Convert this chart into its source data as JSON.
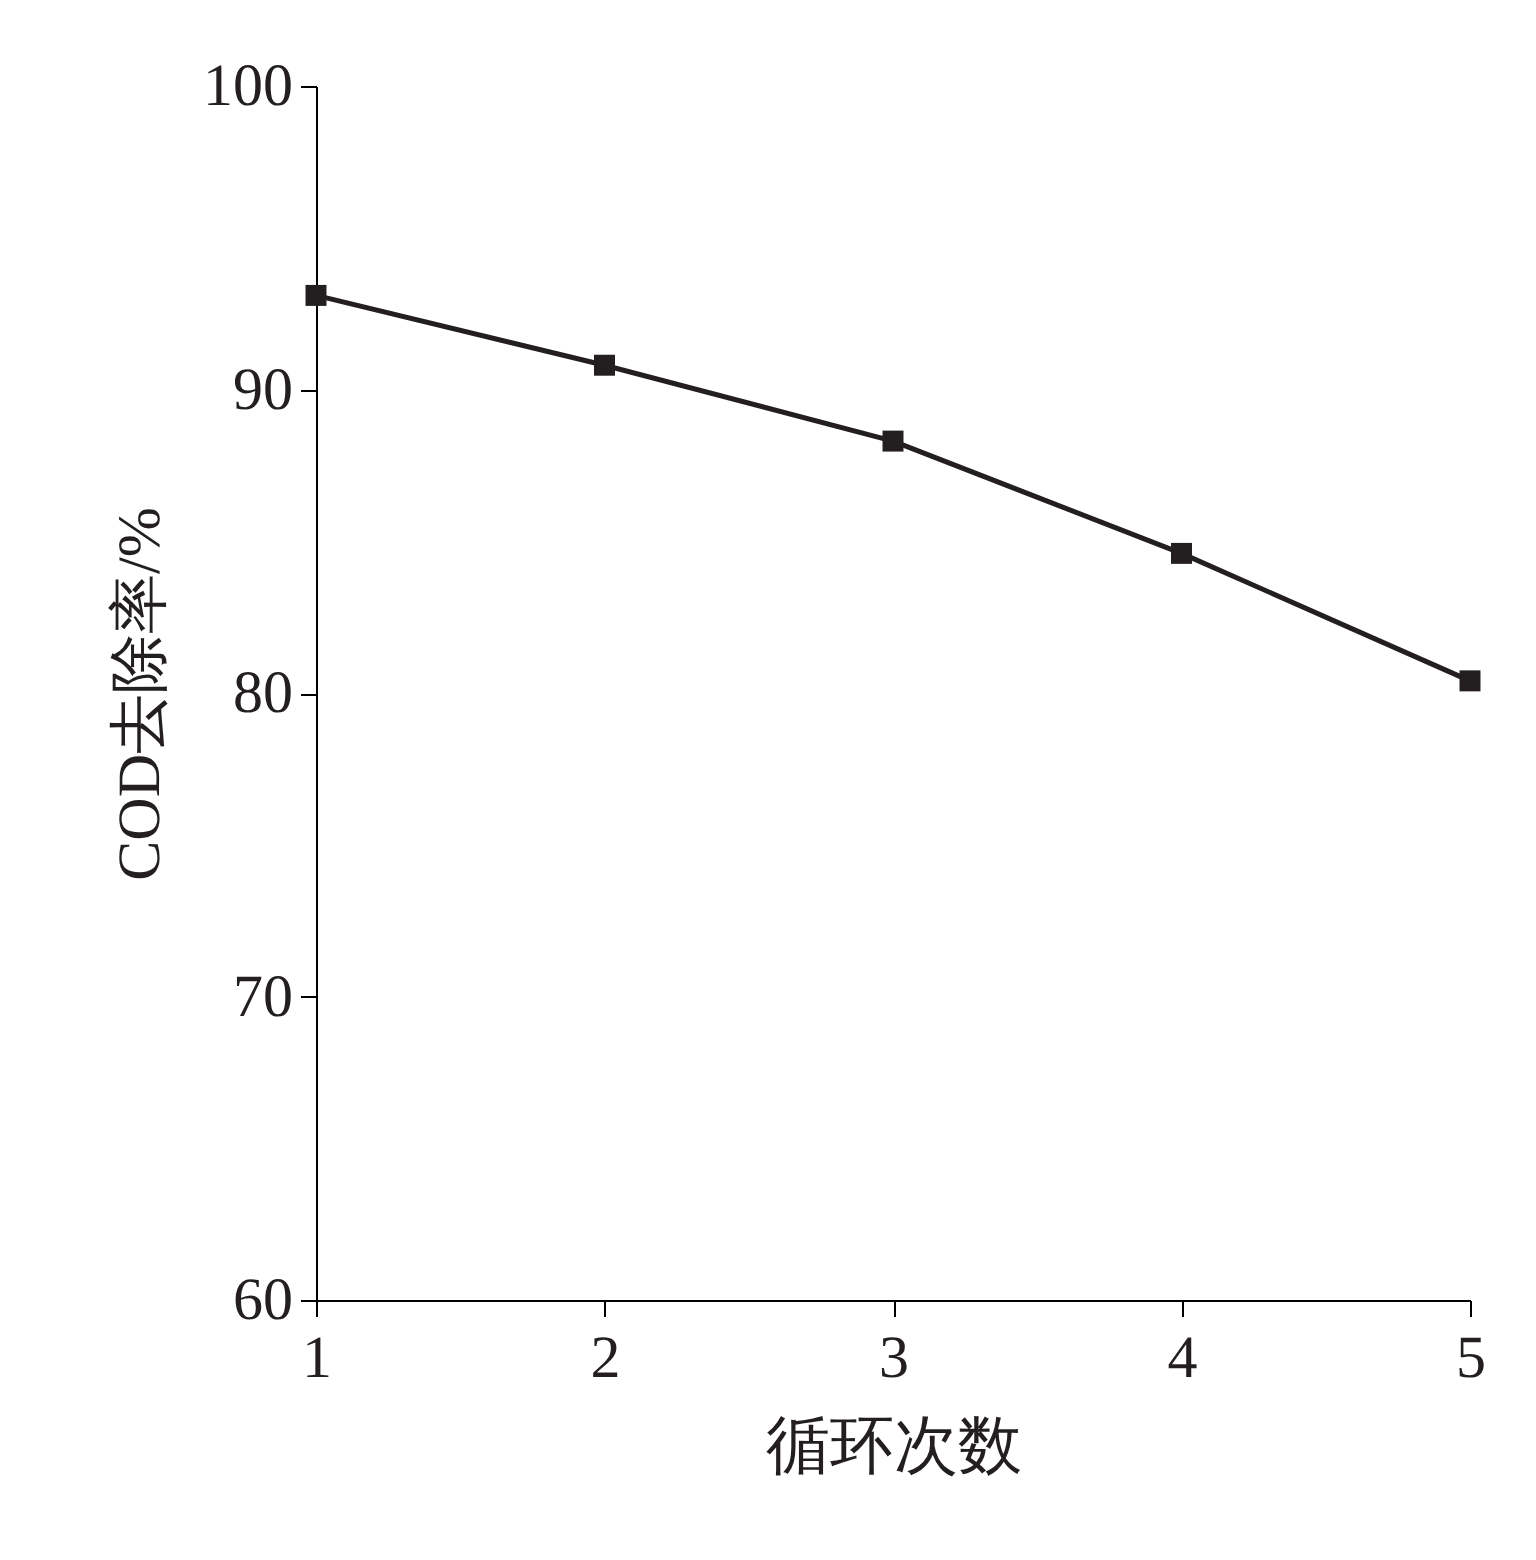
{
  "chart_data": {
    "type": "line",
    "xlabel": "循环次数",
    "ylabel": "COD去除率/%",
    "x": [
      1,
      2,
      3,
      4,
      5
    ],
    "series": [
      {
        "color": "#231f20",
        "values": [
          93.1,
          90.8,
          88.3,
          84.6,
          80.4
        ]
      }
    ],
    "xlim": [
      1,
      5
    ],
    "xticks": [
      1,
      2,
      3,
      4,
      5
    ],
    "ylim": [
      60,
      100
    ],
    "yticks": [
      60,
      70,
      80,
      90,
      100
    ],
    "marker": "square",
    "line_style": "solid",
    "grid": false,
    "legend": false
  }
}
